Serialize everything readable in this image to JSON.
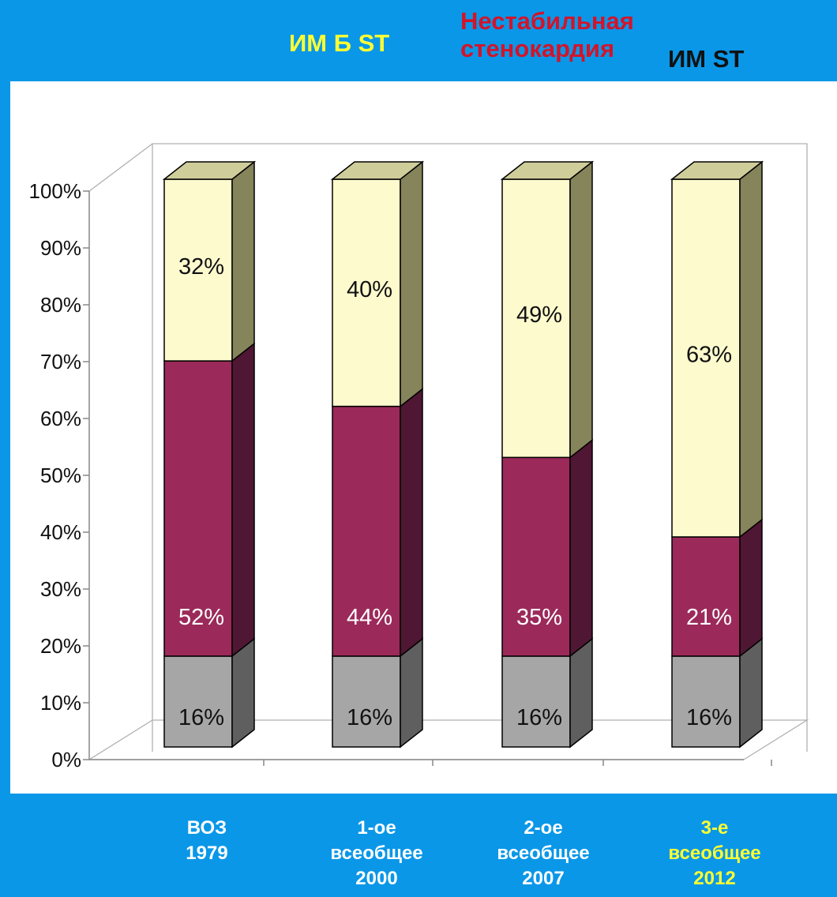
{
  "legend": {
    "items": [
      {
        "label": "ИМ Б ST",
        "color": "#fdfacd",
        "text_color": "#ffff33"
      },
      {
        "label_lines": [
          "Нестабильная",
          "стенокардия"
        ],
        "color": "#9b2a5a",
        "text_color": "#d2142a"
      },
      {
        "label": "ИМ ST",
        "color": "#a6a6a6",
        "text_color": "#111111"
      }
    ]
  },
  "chart_data": {
    "type": "bar",
    "stacked": true,
    "three_d": true,
    "ylim": [
      0,
      100
    ],
    "y_ticks": [
      "0%",
      "10%",
      "20%",
      "30%",
      "40%",
      "50%",
      "60%",
      "70%",
      "80%",
      "90%",
      "100%"
    ],
    "categories": [
      {
        "lines": [
          "ВОЗ",
          "1979"
        ],
        "color": "#ffffff"
      },
      {
        "lines": [
          "1-ое",
          "всеобщее",
          "2000"
        ],
        "color": "#ffffff"
      },
      {
        "lines": [
          "2-ое",
          "всеобщее",
          "2007"
        ],
        "color": "#ffffff"
      },
      {
        "lines": [
          "3-е",
          "всеобщее",
          "2012"
        ],
        "color": "#ffff33"
      }
    ],
    "series": [
      {
        "name": "ИМ ST",
        "values": [
          16,
          16,
          16,
          16
        ],
        "labels": [
          "16%",
          "16%",
          "16%",
          "16%"
        ],
        "front": "#a6a6a6",
        "side": "#5f5f5f",
        "top": "#c4c4c4",
        "text_color": "#111111"
      },
      {
        "name": "Нестабильная стенокардия",
        "values": [
          52,
          44,
          35,
          21
        ],
        "labels": [
          "52%",
          "44%",
          "35%",
          "21%"
        ],
        "front": "#9b2a5a",
        "side": "#4f1733",
        "top": "#b04a78",
        "text_color": "#ffffff"
      },
      {
        "name": "ИМ Б ST",
        "values": [
          32,
          40,
          49,
          63
        ],
        "labels": [
          "32%",
          "40%",
          "49%",
          "63%"
        ],
        "front": "#fdfacd",
        "side": "#85845a",
        "top": "#cfcd9a",
        "text_color": "#111111"
      }
    ],
    "grid": false
  }
}
